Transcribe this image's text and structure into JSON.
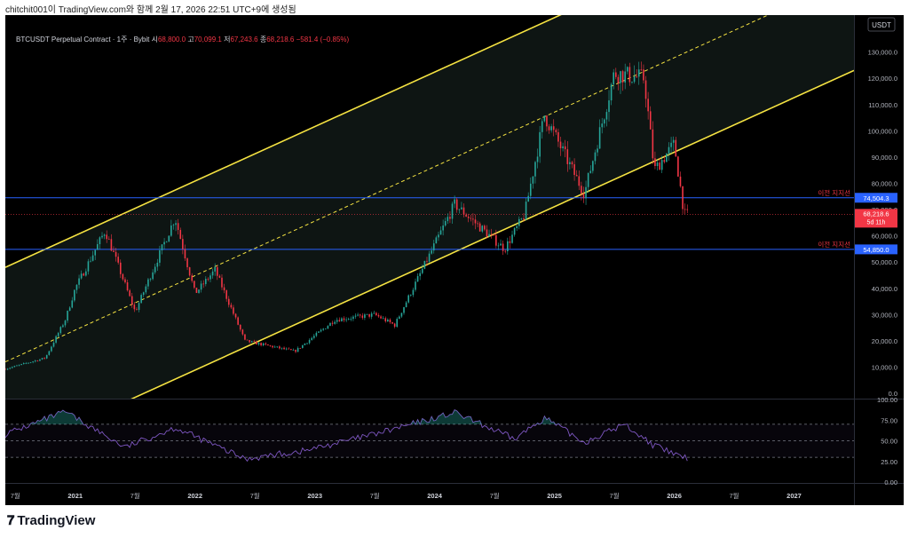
{
  "window": {
    "caption": "chitchit001이 TradingView.com와 함께 2월 17, 2026 22:51 UTC+9에 생성됨"
  },
  "legend": {
    "symbol": "BTCUSDT Perpetual Contract · 1주 · Bybit",
    "open_label": "시",
    "open": "68,800.0",
    "high_label": "고",
    "high": "70,099.1",
    "low_label": "저",
    "low": "67,243.6",
    "close_label": "종",
    "close": "68,218.6",
    "change": "−581.4 (−0.85%)"
  },
  "currency": "USDT",
  "price_axis": {
    "ticks": [
      "130,000.0",
      "120,000.0",
      "110,000.0",
      "100,000.0",
      "90,000.0",
      "80,000.0",
      "70,000.0",
      "60,000.0",
      "50,000.0",
      "40,000.0",
      "30,000.0",
      "20,000.0",
      "10,000.0",
      "0.0"
    ]
  },
  "price_labels": {
    "support_high": "74,504.3",
    "support_low": "54,850.0",
    "current_price": "68,218.6",
    "countdown": "5d 11h",
    "support_text": "이전 지지선"
  },
  "rsi_axis": {
    "ticks": [
      "100.00",
      "75.00",
      "50.00",
      "25.00",
      "0.00"
    ]
  },
  "time_axis": {
    "ticks": [
      "7월",
      "2021",
      "7월",
      "2022",
      "7월",
      "2023",
      "7월",
      "2024",
      "7월",
      "2025",
      "7월",
      "2026",
      "7월",
      "2027"
    ]
  },
  "brand": {
    "name": "TradingView"
  },
  "colors": {
    "up": "#26a69a",
    "down": "#f23645",
    "channel": "#f5e342",
    "support": "#2962ff",
    "rsi": "#7e57c2"
  },
  "chart_data": {
    "type": "line",
    "price_range": [
      -2000,
      138000
    ],
    "rsi_range": [
      0,
      100
    ],
    "x_range": [
      "2020-06",
      "2027-07"
    ],
    "price_path": [
      {
        "x": "2020-06",
        "y": 9300
      },
      {
        "x": "2020-10",
        "y": 13500
      },
      {
        "x": "2020-12",
        "y": 28000
      },
      {
        "x": "2021-01",
        "y": 40000
      },
      {
        "x": "2021-04",
        "y": 62000
      },
      {
        "x": "2021-07",
        "y": 31000
      },
      {
        "x": "2021-11",
        "y": 67000
      },
      {
        "x": "2022-01",
        "y": 38000
      },
      {
        "x": "2022-03",
        "y": 47000
      },
      {
        "x": "2022-06",
        "y": 20000
      },
      {
        "x": "2022-11",
        "y": 16000
      },
      {
        "x": "2023-03",
        "y": 28000
      },
      {
        "x": "2023-07",
        "y": 30000
      },
      {
        "x": "2023-09",
        "y": 26000
      },
      {
        "x": "2024-03",
        "y": 72000
      },
      {
        "x": "2024-08",
        "y": 55000
      },
      {
        "x": "2024-10",
        "y": 68000
      },
      {
        "x": "2024-12",
        "y": 106000
      },
      {
        "x": "2025-04",
        "y": 76000
      },
      {
        "x": "2025-07",
        "y": 122000
      },
      {
        "x": "2025-10",
        "y": 120000
      },
      {
        "x": "2025-11",
        "y": 85000
      },
      {
        "x": "2026-01",
        "y": 95000
      },
      {
        "x": "2026-02",
        "y": 68218.6
      }
    ],
    "rsi_path": [
      {
        "x": "2020-06",
        "y": 58
      },
      {
        "x": "2020-12",
        "y": 85
      },
      {
        "x": "2021-06",
        "y": 42
      },
      {
        "x": "2021-11",
        "y": 66
      },
      {
        "x": "2022-06",
        "y": 28
      },
      {
        "x": "2022-12",
        "y": 38
      },
      {
        "x": "2023-07",
        "y": 58
      },
      {
        "x": "2024-03",
        "y": 84
      },
      {
        "x": "2024-09",
        "y": 52
      },
      {
        "x": "2024-12",
        "y": 78
      },
      {
        "x": "2025-04",
        "y": 48
      },
      {
        "x": "2025-08",
        "y": 70
      },
      {
        "x": "2025-11",
        "y": 44
      },
      {
        "x": "2026-02",
        "y": 29
      }
    ],
    "channel": {
      "lower": [
        {
          "x": "2020-06",
          "y": -24000
        },
        {
          "x": "2027-07",
          "y": 123000
        }
      ],
      "upper_offset": 72000
    },
    "support_levels": [
      74504.3,
      54850.0
    ],
    "rsi_levels": [
      70,
      50,
      30
    ],
    "grid": false
  }
}
